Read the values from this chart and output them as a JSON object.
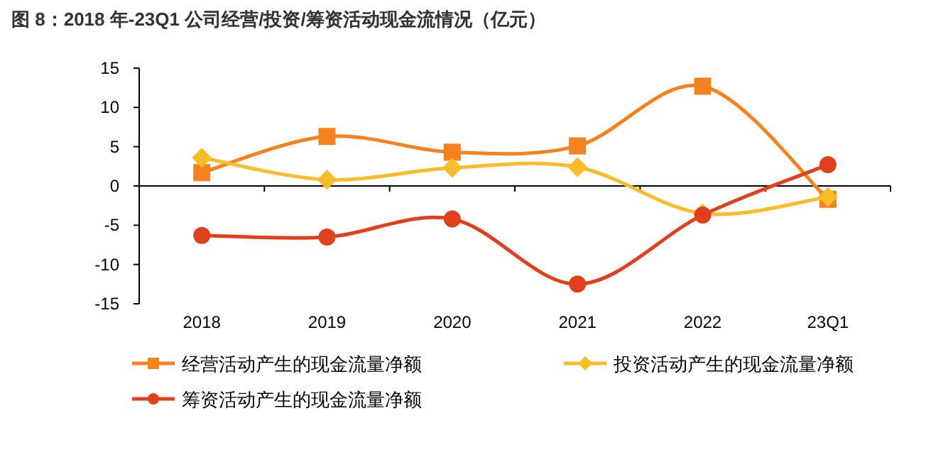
{
  "chart_data": {
    "type": "line",
    "title": "图 8：2018 年-23Q1 公司经营/投资/筹资活动现金流情况（亿元）",
    "categories": [
      "2018",
      "2019",
      "2020",
      "2021",
      "2022",
      "23Q1"
    ],
    "ylim": [
      -15,
      15
    ],
    "yticks": [
      -15,
      -10,
      -5,
      0,
      5,
      10,
      15
    ],
    "legend": "bottom",
    "line_style": "solid",
    "series": [
      {
        "name": "经营活动产生的现金流量净额",
        "color": "#f5821f",
        "marker": "square",
        "values": [
          1.7,
          6.3,
          4.3,
          5.1,
          12.7,
          -1.7
        ]
      },
      {
        "name": "投资活动产生的现金流量净额",
        "color": "#fbbc2a",
        "marker": "diamond",
        "values": [
          3.6,
          0.8,
          2.3,
          2.4,
          -3.5,
          -1.4
        ]
      },
      {
        "name": "筹资活动产生的现金流量净额",
        "color": "#e0401c",
        "marker": "circle",
        "values": [
          -6.3,
          -6.5,
          -4.2,
          -12.5,
          -3.7,
          2.7
        ]
      }
    ]
  }
}
